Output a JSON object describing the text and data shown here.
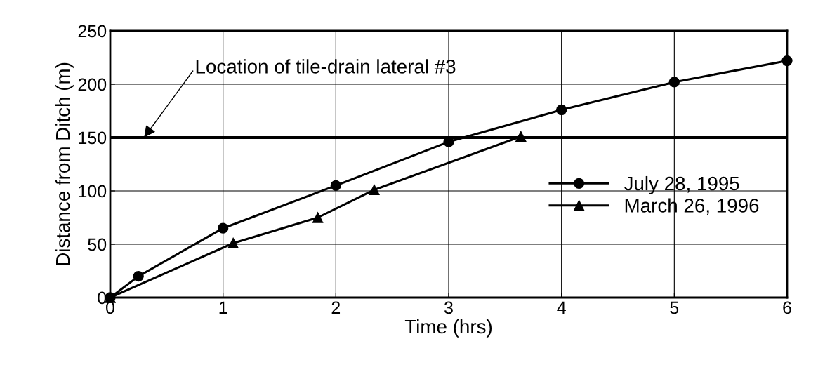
{
  "chart_data": {
    "type": "line",
    "xlabel": "Time (hrs)",
    "ylabel": "Distance from Ditch (m)",
    "xlim": [
      0,
      6
    ],
    "xticks": [
      0,
      1,
      2,
      3,
      4,
      5,
      6
    ],
    "ylim": [
      0,
      250
    ],
    "yticks": [
      0,
      50,
      100,
      150,
      200,
      250
    ],
    "grid": true,
    "legend": "right",
    "series": [
      {
        "name": "July 28, 1995",
        "color": "#000000",
        "marker": "circle",
        "x": [
          0,
          0.25,
          1,
          2,
          3,
          4,
          5,
          6
        ],
        "values": [
          0,
          20,
          65,
          105,
          146,
          176,
          202,
          222
        ]
      },
      {
        "name": "March 26, 1996",
        "color": "#000000",
        "marker": "triangle",
        "x": [
          0,
          1.09,
          1.84,
          2.34,
          3.64
        ],
        "values": [
          0,
          51,
          75,
          101,
          151
        ]
      }
    ],
    "ref_lines": [
      {
        "axis": "y",
        "value": 150,
        "color": "#000000"
      }
    ],
    "annotations": [
      {
        "text": "Location of tile-drain lateral #3",
        "x": 0.3,
        "y": 150
      }
    ]
  }
}
